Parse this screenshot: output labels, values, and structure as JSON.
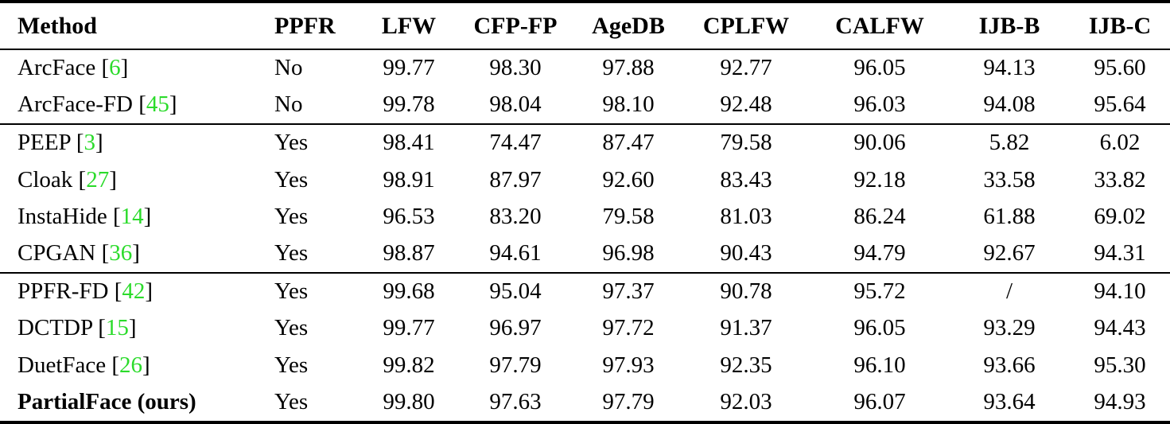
{
  "table": {
    "columns": [
      {
        "label": "Method"
      },
      {
        "label": "PPFR"
      },
      {
        "label": "LFW"
      },
      {
        "label": "CFP-FP"
      },
      {
        "label": "AgeDB"
      },
      {
        "label": "CPLFW"
      },
      {
        "label": "CALFW"
      },
      {
        "label": "IJB-B"
      },
      {
        "label": "IJB-C"
      }
    ],
    "groups": [
      {
        "rows": [
          {
            "method": "ArcFace",
            "citation": "6",
            "bold": false,
            "ppfr": "No",
            "scores": [
              "99.77",
              "98.30",
              "97.88",
              "92.77",
              "96.05",
              "94.13",
              "95.60"
            ]
          },
          {
            "method": "ArcFace-FD",
            "citation": "45",
            "bold": false,
            "ppfr": "No",
            "scores": [
              "99.78",
              "98.04",
              "98.10",
              "92.48",
              "96.03",
              "94.08",
              "95.64"
            ]
          }
        ]
      },
      {
        "rows": [
          {
            "method": "PEEP",
            "citation": "3",
            "bold": false,
            "ppfr": "Yes",
            "scores": [
              "98.41",
              "74.47",
              "87.47",
              "79.58",
              "90.06",
              "5.82",
              "6.02"
            ]
          },
          {
            "method": "Cloak",
            "citation": "27",
            "bold": false,
            "ppfr": "Yes",
            "scores": [
              "98.91",
              "87.97",
              "92.60",
              "83.43",
              "92.18",
              "33.58",
              "33.82"
            ]
          },
          {
            "method": "InstaHide",
            "citation": "14",
            "bold": false,
            "ppfr": "Yes",
            "scores": [
              "96.53",
              "83.20",
              "79.58",
              "81.03",
              "86.24",
              "61.88",
              "69.02"
            ]
          },
          {
            "method": "CPGAN",
            "citation": "36",
            "bold": false,
            "ppfr": "Yes",
            "scores": [
              "98.87",
              "94.61",
              "96.98",
              "90.43",
              "94.79",
              "92.67",
              "94.31"
            ]
          }
        ]
      },
      {
        "rows": [
          {
            "method": "PPFR-FD",
            "citation": "42",
            "bold": false,
            "ppfr": "Yes",
            "scores": [
              "99.68",
              "95.04",
              "97.37",
              "90.78",
              "95.72",
              "/",
              "94.10"
            ]
          },
          {
            "method": "DCTDP",
            "citation": "15",
            "bold": false,
            "ppfr": "Yes",
            "scores": [
              "99.77",
              "96.97",
              "97.72",
              "91.37",
              "96.05",
              "93.29",
              "94.43"
            ]
          },
          {
            "method": "DuetFace",
            "citation": "26",
            "bold": false,
            "ppfr": "Yes",
            "scores": [
              "99.82",
              "97.79",
              "97.93",
              "92.35",
              "96.10",
              "93.66",
              "95.30"
            ]
          },
          {
            "method": "PartialFace (ours)",
            "citation": null,
            "bold": true,
            "ppfr": "Yes",
            "scores": [
              "99.80",
              "97.63",
              "97.79",
              "92.03",
              "96.07",
              "93.64",
              "94.93"
            ]
          }
        ]
      }
    ],
    "colors": {
      "citation_green": "#2BDB2B",
      "text": "#000000",
      "rule": "#000000",
      "background": "#FFFFFF"
    }
  }
}
